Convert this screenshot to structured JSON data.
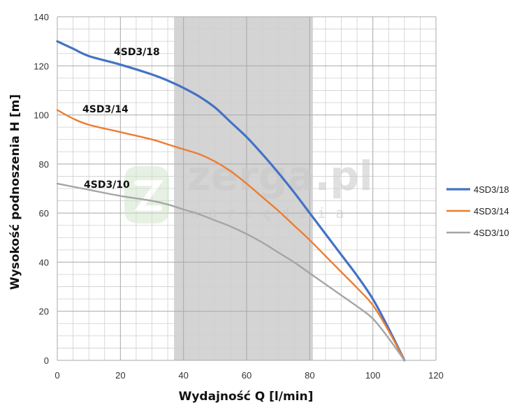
{
  "watermark": {
    "brand": "zerga.pl",
    "tagline": "narzędzia"
  },
  "chart_data": {
    "type": "line",
    "xlabel": "Wydajność Q [l/min]",
    "ylabel": "Wysokość podnoszenia H [m]",
    "xlim": [
      0,
      120
    ],
    "ylim": [
      0,
      140
    ],
    "x_ticks": [
      "0",
      "20",
      "40",
      "60",
      "80",
      "100",
      "120"
    ],
    "y_ticks": [
      "0",
      "20",
      "40",
      "60",
      "80",
      "100",
      "120",
      "140"
    ],
    "grid": true,
    "legend_position": "right",
    "highlight_band": {
      "from": 37,
      "to": 81,
      "color": "#d4d4d4"
    },
    "series": [
      {
        "name": "4SD3/18",
        "label": "4SD3/18",
        "color": "#4472c4",
        "x": [
          0,
          5,
          10,
          20,
          30,
          35,
          40,
          45,
          50,
          55,
          60,
          65,
          70,
          75,
          80,
          85,
          90,
          95,
          100,
          105,
          110
        ],
        "y": [
          130,
          127,
          124,
          120.5,
          116.5,
          114,
          111,
          107.5,
          103,
          97,
          91,
          84,
          76.5,
          68.5,
          60,
          51.5,
          43,
          34.5,
          25,
          13,
          0
        ]
      },
      {
        "name": "4SD3/14",
        "label": "4SD3/14",
        "color": "#ed7d31",
        "x": [
          0,
          5,
          10,
          20,
          30,
          35,
          40,
          45,
          50,
          55,
          60,
          65,
          70,
          75,
          80,
          85,
          90,
          95,
          100,
          105,
          110
        ],
        "y": [
          102,
          98.5,
          96,
          93,
          90,
          88,
          86,
          84,
          81,
          77,
          72,
          66.5,
          61,
          55,
          49,
          42.5,
          36,
          29.5,
          22.5,
          12,
          0
        ]
      },
      {
        "name": "4SD3/10",
        "label": "4SD3/10",
        "color": "#a5a5a5",
        "x": [
          0,
          10,
          20,
          30,
          35,
          40,
          45,
          50,
          55,
          60,
          65,
          70,
          75,
          80,
          85,
          90,
          95,
          100,
          105,
          110
        ],
        "y": [
          72,
          69.5,
          67,
          65,
          63.5,
          61.5,
          59.5,
          57,
          54.5,
          51.5,
          48,
          44,
          40,
          35.5,
          31,
          26.5,
          22,
          17,
          9,
          0
        ]
      }
    ]
  }
}
